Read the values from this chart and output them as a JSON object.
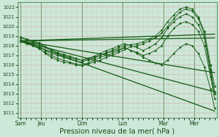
{
  "bg_color": "#cce8d8",
  "grid_minor_color": "#ee9999",
  "grid_major_color": "#cc7777",
  "line_color": "#1a5e1a",
  "xlabel": "Pression niveau de la mer( hPa )",
  "xlabel_fontsize": 7.5,
  "ylim": [
    1010.5,
    1022.5
  ],
  "yticks": [
    1011,
    1012,
    1013,
    1014,
    1015,
    1016,
    1017,
    1018,
    1019,
    1020,
    1021,
    1022
  ],
  "xtick_labels": [
    "Sam",
    "Jeu",
    "Dim",
    "Lun",
    "Mar",
    "Mer"
  ],
  "xtick_positions": [
    0.0,
    1.0,
    3.0,
    5.0,
    7.0,
    8.5
  ],
  "xlim": [
    -0.15,
    9.6
  ],
  "total_x": 9.6,
  "lines": [
    {
      "x": [
        0,
        0.3,
        0.6,
        0.9,
        1.2,
        1.5,
        1.8,
        2.1,
        2.4,
        2.7,
        3.0,
        3.3,
        3.6,
        3.9,
        4.2,
        4.5,
        4.8,
        5.1,
        5.4,
        5.7,
        6.0,
        6.3,
        6.6,
        6.9,
        7.2,
        7.5,
        7.8,
        8.1,
        8.4,
        8.7,
        9.0,
        9.3,
        9.5
      ],
      "y": [
        1018.5,
        1018.3,
        1018.1,
        1017.8,
        1017.2,
        1016.8,
        1016.5,
        1016.3,
        1016.2,
        1016.0,
        1015.9,
        1016.1,
        1016.3,
        1016.5,
        1016.8,
        1017.0,
        1017.3,
        1017.6,
        1017.9,
        1018.0,
        1018.2,
        1018.5,
        1018.8,
        1019.3,
        1020.0,
        1020.8,
        1021.5,
        1021.8,
        1021.6,
        1020.8,
        1019.2,
        1015.5,
        1013.2
      ],
      "marker": "D",
      "ms": 1.5,
      "lw": 0.7
    },
    {
      "x": [
        0,
        0.3,
        0.6,
        0.9,
        1.2,
        1.5,
        1.8,
        2.1,
        2.4,
        2.7,
        3.0,
        3.3,
        3.6,
        3.9,
        4.2,
        4.5,
        4.8,
        5.1,
        5.4,
        5.7,
        6.0,
        6.3,
        6.6,
        6.9,
        7.2,
        7.5,
        7.8,
        8.1,
        8.4,
        8.7,
        9.0,
        9.3,
        9.5
      ],
      "y": [
        1018.6,
        1018.4,
        1018.2,
        1018.0,
        1017.5,
        1017.2,
        1017.0,
        1016.8,
        1016.6,
        1016.4,
        1016.3,
        1016.5,
        1016.7,
        1017.0,
        1017.3,
        1017.5,
        1017.8,
        1018.0,
        1018.1,
        1018.2,
        1018.4,
        1018.7,
        1019.0,
        1019.6,
        1020.5,
        1021.2,
        1021.8,
        1022.0,
        1021.8,
        1021.0,
        1019.5,
        1016.0,
        1013.8
      ],
      "marker": "D",
      "ms": 1.5,
      "lw": 0.7
    },
    {
      "x": [
        0,
        0.3,
        0.6,
        0.9,
        1.2,
        1.5,
        1.8,
        2.1,
        2.4,
        2.7,
        3.0,
        3.3,
        3.6,
        3.9,
        4.2,
        4.5,
        4.8,
        5.1,
        5.4,
        5.7,
        6.0,
        6.3,
        6.6,
        6.9,
        7.2,
        7.5,
        7.8,
        8.1,
        8.4,
        8.7,
        9.0,
        9.3,
        9.5
      ],
      "y": [
        1018.8,
        1018.6,
        1018.4,
        1018.2,
        1017.8,
        1017.5,
        1017.2,
        1017.0,
        1016.8,
        1016.6,
        1016.5,
        1016.7,
        1016.9,
        1017.2,
        1017.5,
        1017.7,
        1018.0,
        1018.2,
        1018.0,
        1017.8,
        1017.5,
        1017.8,
        1018.2,
        1018.8,
        1019.8,
        1020.5,
        1021.0,
        1021.3,
        1021.0,
        1020.2,
        1018.8,
        1015.2,
        1013.0
      ],
      "marker": "D",
      "ms": 1.5,
      "lw": 0.7
    },
    {
      "x": [
        0,
        0.3,
        0.6,
        0.9,
        1.2,
        1.5,
        1.8,
        2.1,
        2.4,
        2.7,
        3.0,
        3.3,
        3.6,
        3.9,
        4.2,
        4.5,
        4.8,
        5.1,
        5.4,
        5.7,
        6.0,
        6.3,
        6.6,
        6.9,
        7.2,
        7.5,
        7.8,
        8.1,
        8.4,
        8.7,
        9.0,
        9.3,
        9.5
      ],
      "y": [
        1018.4,
        1018.2,
        1018.0,
        1017.7,
        1017.3,
        1017.0,
        1016.7,
        1016.5,
        1016.3,
        1016.1,
        1016.0,
        1016.2,
        1016.5,
        1016.8,
        1017.0,
        1017.2,
        1017.5,
        1017.8,
        1017.5,
        1017.3,
        1017.0,
        1017.2,
        1017.5,
        1018.0,
        1019.0,
        1019.8,
        1020.3,
        1020.5,
        1020.2,
        1019.5,
        1018.0,
        1014.8,
        1012.5
      ],
      "marker": "D",
      "ms": 1.5,
      "lw": 0.7
    },
    {
      "x": [
        0,
        0.3,
        0.6,
        0.9,
        1.2,
        1.5,
        1.8,
        2.1,
        2.4,
        2.7,
        3.0,
        3.3,
        3.6,
        3.9,
        4.2,
        4.5,
        4.8,
        5.1,
        5.4,
        5.7,
        6.0,
        6.3,
        6.6,
        6.9,
        7.2,
        7.5,
        7.8,
        8.1,
        8.4,
        8.7,
        9.0,
        9.3,
        9.5
      ],
      "y": [
        1018.9,
        1018.7,
        1018.5,
        1018.3,
        1017.9,
        1017.6,
        1017.3,
        1017.1,
        1016.9,
        1016.7,
        1016.5,
        1016.6,
        1016.8,
        1017.0,
        1017.2,
        1017.4,
        1017.6,
        1017.8,
        1017.5,
        1017.2,
        1016.8,
        1016.5,
        1016.2,
        1016.0,
        1016.5,
        1017.2,
        1017.8,
        1018.2,
        1018.0,
        1017.2,
        1015.8,
        1013.5,
        1011.5
      ],
      "marker": "D",
      "ms": 1.5,
      "lw": 0.7
    },
    {
      "x": [
        0,
        9.5
      ],
      "y": [
        1018.5,
        1018.8
      ],
      "marker": "none",
      "ms": 0,
      "lw": 1.0
    },
    {
      "x": [
        0,
        9.5
      ],
      "y": [
        1018.5,
        1019.2
      ],
      "marker": "none",
      "ms": 0,
      "lw": 1.0
    },
    {
      "x": [
        0,
        9.5
      ],
      "y": [
        1018.5,
        1015.2
      ],
      "marker": "none",
      "ms": 0,
      "lw": 1.0
    },
    {
      "x": [
        0,
        9.5
      ],
      "y": [
        1018.5,
        1013.2
      ],
      "marker": "none",
      "ms": 0,
      "lw": 1.0
    },
    {
      "x": [
        0,
        9.5
      ],
      "y": [
        1018.5,
        1011.2
      ],
      "marker": "none",
      "ms": 0,
      "lw": 1.0
    }
  ]
}
